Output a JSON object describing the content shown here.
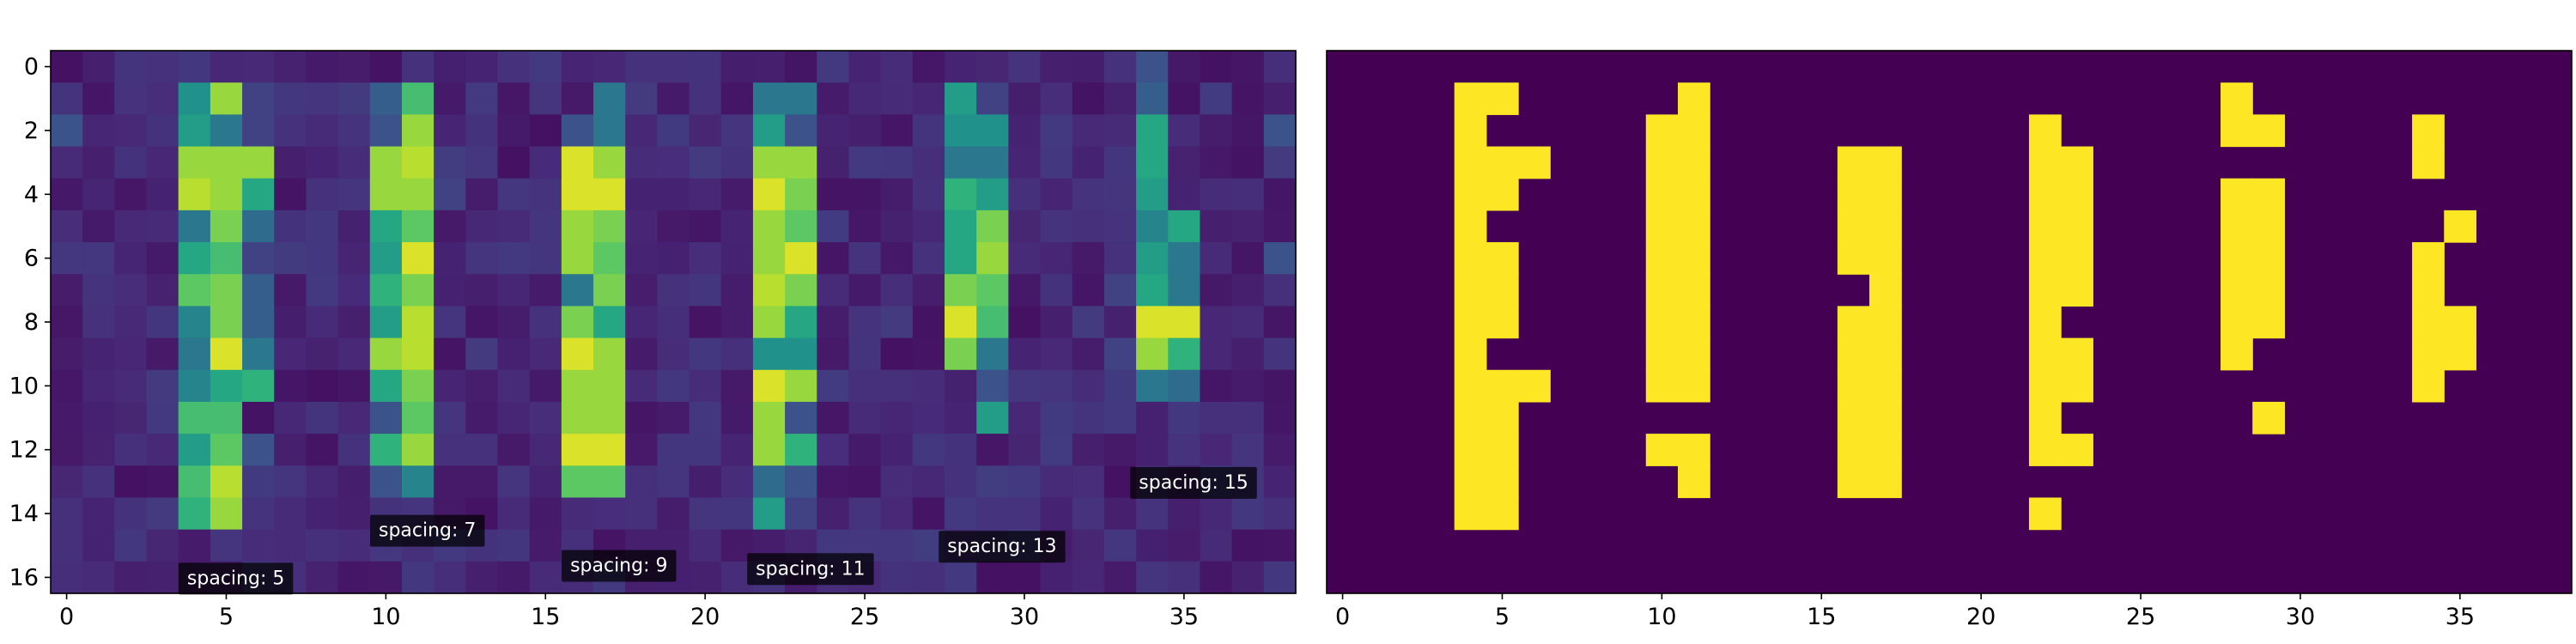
{
  "chart_data": [
    {
      "type": "heatmap",
      "title": "",
      "xlabel": "",
      "ylabel": "",
      "grid": false,
      "rows": 17,
      "cols": 39,
      "xlim": [
        -0.5,
        38.5
      ],
      "ylim": [
        16.5,
        -0.5
      ],
      "x_ticks": [
        0,
        5,
        10,
        15,
        20,
        25,
        30,
        35
      ],
      "y_ticks": [
        0,
        2,
        4,
        6,
        8,
        10,
        12,
        14,
        16
      ],
      "colormap": "viridis",
      "background_value": 0.05,
      "cells": [
        [
          4,
          1,
          0.5
        ],
        [
          4,
          2,
          0.55
        ],
        [
          4,
          3,
          0.85
        ],
        [
          4,
          4,
          0.9
        ],
        [
          4,
          5,
          0.4
        ],
        [
          4,
          6,
          0.6
        ],
        [
          4,
          7,
          0.75
        ],
        [
          4,
          8,
          0.45
        ],
        [
          4,
          9,
          0.4
        ],
        [
          4,
          10,
          0.45
        ],
        [
          4,
          11,
          0.7
        ],
        [
          4,
          12,
          0.55
        ],
        [
          4,
          13,
          0.7
        ],
        [
          4,
          14,
          0.65
        ],
        [
          5,
          1,
          0.85
        ],
        [
          5,
          2,
          0.4
        ],
        [
          5,
          3,
          0.85
        ],
        [
          5,
          4,
          0.85
        ],
        [
          5,
          5,
          0.8
        ],
        [
          5,
          6,
          0.7
        ],
        [
          5,
          7,
          0.8
        ],
        [
          5,
          8,
          0.8
        ],
        [
          5,
          9,
          0.95
        ],
        [
          5,
          10,
          0.6
        ],
        [
          5,
          11,
          0.7
        ],
        [
          5,
          12,
          0.75
        ],
        [
          5,
          13,
          0.9
        ],
        [
          5,
          14,
          0.85
        ],
        [
          6,
          1,
          0.2
        ],
        [
          6,
          2,
          0.2
        ],
        [
          6,
          3,
          0.85
        ],
        [
          6,
          4,
          0.6
        ],
        [
          6,
          5,
          0.35
        ],
        [
          6,
          6,
          0.2
        ],
        [
          6,
          7,
          0.3
        ],
        [
          6,
          8,
          0.3
        ],
        [
          6,
          9,
          0.4
        ],
        [
          6,
          10,
          0.65
        ],
        [
          6,
          12,
          0.25
        ],
        [
          10,
          1,
          0.3
        ],
        [
          10,
          2,
          0.25
        ],
        [
          10,
          3,
          0.85
        ],
        [
          10,
          4,
          0.85
        ],
        [
          10,
          5,
          0.6
        ],
        [
          10,
          6,
          0.55
        ],
        [
          10,
          7,
          0.65
        ],
        [
          10,
          8,
          0.55
        ],
        [
          10,
          9,
          0.85
        ],
        [
          10,
          10,
          0.6
        ],
        [
          10,
          11,
          0.25
        ],
        [
          10,
          12,
          0.65
        ],
        [
          10,
          13,
          0.25
        ],
        [
          10,
          14,
          0.15
        ],
        [
          11,
          1,
          0.7
        ],
        [
          11,
          2,
          0.85
        ],
        [
          11,
          3,
          0.9
        ],
        [
          11,
          4,
          0.85
        ],
        [
          11,
          5,
          0.75
        ],
        [
          11,
          6,
          0.95
        ],
        [
          11,
          7,
          0.8
        ],
        [
          11,
          8,
          0.9
        ],
        [
          11,
          9,
          0.9
        ],
        [
          11,
          10,
          0.8
        ],
        [
          11,
          11,
          0.75
        ],
        [
          11,
          12,
          0.85
        ],
        [
          11,
          13,
          0.45
        ],
        [
          16,
          2,
          0.25
        ],
        [
          16,
          3,
          0.95
        ],
        [
          16,
          4,
          0.95
        ],
        [
          16,
          5,
          0.85
        ],
        [
          16,
          6,
          0.85
        ],
        [
          16,
          7,
          0.4
        ],
        [
          16,
          8,
          0.8
        ],
        [
          16,
          9,
          0.95
        ],
        [
          16,
          10,
          0.85
        ],
        [
          16,
          11,
          0.85
        ],
        [
          16,
          12,
          0.95
        ],
        [
          16,
          13,
          0.75
        ],
        [
          17,
          1,
          0.4
        ],
        [
          17,
          2,
          0.4
        ],
        [
          17,
          3,
          0.85
        ],
        [
          17,
          4,
          0.95
        ],
        [
          17,
          5,
          0.8
        ],
        [
          17,
          6,
          0.75
        ],
        [
          17,
          7,
          0.8
        ],
        [
          17,
          8,
          0.6
        ],
        [
          17,
          9,
          0.85
        ],
        [
          17,
          10,
          0.85
        ],
        [
          17,
          11,
          0.85
        ],
        [
          17,
          12,
          0.95
        ],
        [
          17,
          13,
          0.75
        ],
        [
          22,
          1,
          0.4
        ],
        [
          22,
          2,
          0.55
        ],
        [
          22,
          3,
          0.85
        ],
        [
          22,
          4,
          0.95
        ],
        [
          22,
          5,
          0.85
        ],
        [
          22,
          6,
          0.85
        ],
        [
          22,
          7,
          0.9
        ],
        [
          22,
          8,
          0.85
        ],
        [
          22,
          9,
          0.5
        ],
        [
          22,
          10,
          0.95
        ],
        [
          22,
          11,
          0.85
        ],
        [
          22,
          12,
          0.85
        ],
        [
          22,
          13,
          0.35
        ],
        [
          22,
          14,
          0.55
        ],
        [
          23,
          1,
          0.4
        ],
        [
          23,
          2,
          0.25
        ],
        [
          23,
          3,
          0.85
        ],
        [
          23,
          4,
          0.8
        ],
        [
          23,
          5,
          0.75
        ],
        [
          23,
          6,
          0.95
        ],
        [
          23,
          7,
          0.8
        ],
        [
          23,
          8,
          0.6
        ],
        [
          23,
          9,
          0.5
        ],
        [
          23,
          10,
          0.85
        ],
        [
          23,
          11,
          0.25
        ],
        [
          23,
          12,
          0.65
        ],
        [
          23,
          13,
          0.25
        ],
        [
          23,
          14,
          0.2
        ],
        [
          28,
          1,
          0.55
        ],
        [
          28,
          2,
          0.5
        ],
        [
          28,
          3,
          0.4
        ],
        [
          28,
          4,
          0.65
        ],
        [
          28,
          5,
          0.6
        ],
        [
          28,
          6,
          0.6
        ],
        [
          28,
          7,
          0.8
        ],
        [
          28,
          8,
          0.95
        ],
        [
          28,
          9,
          0.8
        ],
        [
          28,
          12,
          0.15
        ],
        [
          28,
          13,
          0.15
        ],
        [
          29,
          1,
          0.2
        ],
        [
          29,
          2,
          0.5
        ],
        [
          29,
          3,
          0.4
        ],
        [
          29,
          4,
          0.55
        ],
        [
          29,
          5,
          0.8
        ],
        [
          29,
          6,
          0.85
        ],
        [
          29,
          7,
          0.75
        ],
        [
          29,
          8,
          0.7
        ],
        [
          29,
          9,
          0.4
        ],
        [
          29,
          10,
          0.25
        ],
        [
          29,
          11,
          0.55
        ],
        [
          34,
          0,
          0.25
        ],
        [
          34,
          1,
          0.3
        ],
        [
          34,
          2,
          0.6
        ],
        [
          34,
          3,
          0.6
        ],
        [
          34,
          4,
          0.55
        ],
        [
          34,
          5,
          0.45
        ],
        [
          34,
          6,
          0.55
        ],
        [
          34,
          7,
          0.6
        ],
        [
          34,
          8,
          0.95
        ],
        [
          34,
          9,
          0.85
        ],
        [
          34,
          10,
          0.4
        ],
        [
          35,
          5,
          0.6
        ],
        [
          35,
          6,
          0.4
        ],
        [
          35,
          7,
          0.4
        ],
        [
          35,
          8,
          0.95
        ],
        [
          35,
          9,
          0.65
        ],
        [
          35,
          10,
          0.35
        ],
        [
          33,
          7,
          0.2
        ],
        [
          33,
          9,
          0.2
        ],
        [
          12,
          4,
          0.2
        ],
        [
          7,
          5,
          0.15
        ],
        [
          3,
          2,
          0.15
        ],
        [
          2,
          2,
          0.12
        ],
        [
          0,
          2,
          0.25
        ],
        [
          38,
          2,
          0.25
        ],
        [
          38,
          6,
          0.25
        ]
      ],
      "annotations": [
        {
          "text": "spacing: 5",
          "x": 5.3,
          "y": 16.0
        },
        {
          "text": "spacing: 7",
          "x": 11.3,
          "y": 14.5
        },
        {
          "text": "spacing: 9",
          "x": 17.3,
          "y": 15.6
        },
        {
          "text": "spacing: 11",
          "x": 23.3,
          "y": 15.7
        },
        {
          "text": "spacing: 13",
          "x": 29.3,
          "y": 15.0
        },
        {
          "text": "spacing: 15",
          "x": 35.3,
          "y": 13.0
        }
      ]
    },
    {
      "type": "heatmap",
      "title": "",
      "xlabel": "",
      "ylabel": "",
      "grid": false,
      "rows": 17,
      "cols": 39,
      "xlim": [
        -0.5,
        38.5
      ],
      "ylim": [
        16.5,
        -0.5
      ],
      "x_ticks": [
        0,
        5,
        10,
        15,
        20,
        25,
        30,
        35
      ],
      "colormap": "binary-viridis",
      "on_color": "#fde725",
      "off_color": "#440154",
      "on_cells": [
        [
          4,
          1
        ],
        [
          4,
          2
        ],
        [
          4,
          3
        ],
        [
          4,
          4
        ],
        [
          4,
          5
        ],
        [
          4,
          6
        ],
        [
          4,
          7
        ],
        [
          4,
          8
        ],
        [
          4,
          9
        ],
        [
          4,
          10
        ],
        [
          4,
          11
        ],
        [
          4,
          12
        ],
        [
          4,
          13
        ],
        [
          4,
          14
        ],
        [
          5,
          1
        ],
        [
          5,
          3
        ],
        [
          5,
          4
        ],
        [
          5,
          6
        ],
        [
          5,
          7
        ],
        [
          5,
          8
        ],
        [
          5,
          10
        ],
        [
          5,
          11
        ],
        [
          5,
          12
        ],
        [
          5,
          13
        ],
        [
          5,
          14
        ],
        [
          6,
          3
        ],
        [
          6,
          10
        ],
        [
          10,
          2
        ],
        [
          10,
          3
        ],
        [
          10,
          4
        ],
        [
          10,
          5
        ],
        [
          10,
          6
        ],
        [
          10,
          7
        ],
        [
          10,
          8
        ],
        [
          10,
          9
        ],
        [
          10,
          10
        ],
        [
          10,
          12
        ],
        [
          11,
          1
        ],
        [
          11,
          2
        ],
        [
          11,
          3
        ],
        [
          11,
          4
        ],
        [
          11,
          5
        ],
        [
          11,
          6
        ],
        [
          11,
          7
        ],
        [
          11,
          8
        ],
        [
          11,
          9
        ],
        [
          11,
          10
        ],
        [
          11,
          12
        ],
        [
          11,
          13
        ],
        [
          16,
          3
        ],
        [
          16,
          4
        ],
        [
          16,
          5
        ],
        [
          16,
          6
        ],
        [
          16,
          8
        ],
        [
          16,
          9
        ],
        [
          16,
          10
        ],
        [
          16,
          11
        ],
        [
          16,
          12
        ],
        [
          16,
          13
        ],
        [
          17,
          3
        ],
        [
          17,
          4
        ],
        [
          17,
          5
        ],
        [
          17,
          6
        ],
        [
          17,
          7
        ],
        [
          17,
          8
        ],
        [
          17,
          9
        ],
        [
          17,
          10
        ],
        [
          17,
          11
        ],
        [
          17,
          12
        ],
        [
          17,
          13
        ],
        [
          22,
          2
        ],
        [
          22,
          3
        ],
        [
          22,
          4
        ],
        [
          22,
          5
        ],
        [
          22,
          6
        ],
        [
          22,
          7
        ],
        [
          22,
          8
        ],
        [
          22,
          9
        ],
        [
          22,
          10
        ],
        [
          22,
          11
        ],
        [
          22,
          12
        ],
        [
          22,
          14
        ],
        [
          23,
          3
        ],
        [
          23,
          4
        ],
        [
          23,
          5
        ],
        [
          23,
          6
        ],
        [
          23,
          7
        ],
        [
          23,
          9
        ],
        [
          23,
          10
        ],
        [
          23,
          12
        ],
        [
          28,
          1
        ],
        [
          28,
          2
        ],
        [
          28,
          4
        ],
        [
          28,
          5
        ],
        [
          28,
          6
        ],
        [
          28,
          7
        ],
        [
          28,
          8
        ],
        [
          28,
          9
        ],
        [
          29,
          2
        ],
        [
          29,
          4
        ],
        [
          29,
          5
        ],
        [
          29,
          6
        ],
        [
          29,
          7
        ],
        [
          29,
          8
        ],
        [
          29,
          11
        ],
        [
          34,
          2
        ],
        [
          34,
          3
        ],
        [
          34,
          6
        ],
        [
          34,
          7
        ],
        [
          34,
          8
        ],
        [
          34,
          9
        ],
        [
          34,
          10
        ],
        [
          35,
          5
        ],
        [
          35,
          8
        ],
        [
          35,
          9
        ]
      ]
    }
  ]
}
